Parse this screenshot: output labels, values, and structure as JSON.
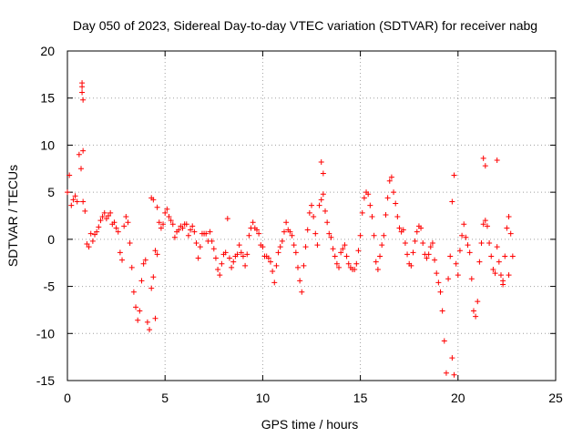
{
  "chart_data": {
    "type": "scatter",
    "title": "Day 050 of 2023, Sidereal Day-to-day VTEC variation (SDTVAR) for receiver nabg",
    "xlabel": "GPS time / hours",
    "ylabel": "SDTVAR / TECUs",
    "xlim": [
      0,
      25
    ],
    "ylim": [
      -15,
      20
    ],
    "xticks": [
      0,
      5,
      10,
      15,
      20,
      25
    ],
    "yticks": [
      -15,
      -10,
      -5,
      0,
      5,
      10,
      15,
      20
    ],
    "grid": true,
    "marker": "+",
    "color": "#ff0000",
    "series": [
      {
        "name": "SDTVAR",
        "x": [
          0.0,
          0.1,
          0.2,
          0.3,
          0.4,
          0.5,
          0.6,
          0.7,
          0.8,
          0.9,
          1.0,
          1.1,
          1.2,
          1.3,
          1.4,
          1.5,
          1.6,
          1.7,
          1.8,
          1.9,
          2.0,
          2.1,
          2.2,
          2.3,
          2.4,
          2.5,
          2.6,
          2.7,
          2.8,
          2.9,
          3.0,
          3.1,
          3.2,
          3.3,
          3.4,
          3.5,
          3.6,
          3.7,
          3.8,
          3.9,
          4.0,
          4.1,
          4.2,
          4.3,
          4.4,
          4.5,
          4.6,
          4.7,
          4.8,
          4.9,
          5.0,
          5.1,
          5.2,
          5.3,
          5.4,
          5.5,
          5.6,
          5.7,
          5.8,
          5.9,
          6.0,
          6.1,
          6.2,
          6.3,
          6.4,
          6.5,
          6.6,
          6.7,
          6.8,
          6.9,
          7.0,
          7.1,
          7.2,
          7.3,
          7.4,
          7.5,
          7.6,
          7.7,
          7.8,
          7.9,
          8.0,
          8.1,
          8.2,
          8.3,
          8.4,
          8.5,
          8.6,
          8.7,
          8.8,
          8.9,
          9.0,
          9.1,
          9.2,
          9.3,
          9.4,
          9.5,
          9.6,
          9.7,
          9.8,
          9.9,
          10.0,
          10.1,
          10.2,
          10.3,
          10.4,
          10.5,
          10.6,
          10.7,
          10.8,
          10.9,
          11.0,
          11.1,
          11.2,
          11.3,
          11.4,
          11.5,
          11.6,
          11.7,
          11.8,
          11.9,
          12.0,
          12.1,
          12.2,
          12.3,
          12.4,
          12.5,
          12.6,
          12.7,
          12.8,
          12.9,
          13.0,
          13.1,
          13.2,
          13.3,
          13.4,
          13.5,
          13.6,
          13.7,
          13.8,
          13.9,
          14.0,
          14.1,
          14.2,
          14.3,
          14.4,
          14.5,
          14.6,
          14.7,
          14.8,
          14.9,
          15.0,
          15.1,
          15.2,
          15.3,
          15.4,
          15.5,
          15.6,
          15.7,
          15.8,
          15.9,
          16.0,
          16.1,
          16.2,
          16.3,
          16.4,
          16.5,
          16.6,
          16.7,
          16.8,
          16.9,
          17.0,
          17.1,
          17.2,
          17.3,
          17.4,
          17.5,
          17.6,
          17.7,
          17.8,
          17.9,
          18.0,
          18.1,
          18.2,
          18.3,
          18.4,
          18.5,
          18.6,
          18.7,
          18.8,
          18.9,
          19.0,
          19.1,
          19.2,
          19.3,
          19.4,
          19.5,
          19.6,
          19.7,
          19.8,
          19.9,
          20.0,
          20.1,
          20.2,
          20.3,
          20.4,
          20.5,
          20.6,
          20.7,
          20.8,
          20.9,
          21.0,
          21.1,
          21.2,
          21.3,
          21.4,
          21.5,
          21.6,
          21.7,
          21.8,
          21.9,
          22.0,
          22.1,
          22.2,
          22.3,
          22.4,
          22.5,
          22.6,
          22.7,
          22.8,
          0.75,
          0.75,
          0.75,
          0.8,
          0.8,
          4.3,
          4.4,
          4.5,
          4.6,
          19.7,
          19.8,
          21.3,
          21.4,
          22.0,
          22.3,
          22.6,
          13.0,
          13.1
        ],
        "y": [
          5.0,
          6.8,
          3.6,
          4.2,
          4.6,
          4.0,
          9.0,
          7.5,
          4.0,
          3.0,
          -0.5,
          -0.8,
          0.6,
          -0.2,
          0.5,
          0.8,
          1.3,
          2.0,
          2.4,
          2.8,
          2.2,
          2.5,
          2.8,
          1.6,
          1.8,
          1.2,
          0.8,
          -1.4,
          -2.2,
          1.4,
          2.4,
          1.8,
          -0.4,
          -3.0,
          -5.6,
          -7.2,
          -8.6,
          -7.6,
          -4.4,
          -2.6,
          -2.2,
          -8.8,
          -9.6,
          -5.2,
          -4.0,
          -8.4,
          3.4,
          1.8,
          1.2,
          1.6,
          2.8,
          3.2,
          2.4,
          2.0,
          1.6,
          0.2,
          0.8,
          1.0,
          1.4,
          1.2,
          1.6,
          1.6,
          0.4,
          1.0,
          1.4,
          0.8,
          -0.4,
          -2.0,
          -0.8,
          0.6,
          0.6,
          0.6,
          -0.2,
          0.8,
          -0.2,
          -1.0,
          -2.0,
          -3.2,
          -3.8,
          -2.6,
          -1.6,
          -1.4,
          2.2,
          -2.0,
          -3.0,
          -2.4,
          -1.8,
          -1.6,
          -0.6,
          -1.4,
          -1.8,
          -2.8,
          -1.6,
          0.4,
          1.2,
          1.8,
          1.2,
          1.0,
          0.6,
          -0.6,
          -0.8,
          -1.8,
          -1.8,
          -2.0,
          -2.4,
          -3.4,
          -4.6,
          -2.8,
          -1.4,
          -0.8,
          -0.2,
          0.8,
          1.8,
          1.0,
          0.8,
          0.4,
          -0.6,
          -1.4,
          -3.0,
          -4.4,
          -5.6,
          -2.8,
          -0.8,
          1.0,
          2.8,
          3.6,
          2.4,
          0.6,
          -0.6,
          3.6,
          4.2,
          4.8,
          3.0,
          1.8,
          0.6,
          0.2,
          -1.0,
          -1.8,
          -2.6,
          -3.0,
          -1.4,
          -1.0,
          -0.6,
          -1.8,
          -2.6,
          -3.0,
          -3.2,
          -3.2,
          -2.6,
          -1.2,
          0.4,
          2.8,
          4.4,
          5.0,
          4.8,
          3.6,
          2.4,
          0.4,
          -2.4,
          -3.2,
          -1.8,
          -0.6,
          0.4,
          2.6,
          4.4,
          6.2,
          6.6,
          5.0,
          3.8,
          2.4,
          1.2,
          0.8,
          1.0,
          -0.4,
          -1.6,
          -2.6,
          -2.8,
          -1.4,
          -0.2,
          0.8,
          1.4,
          1.2,
          -0.4,
          -1.6,
          -2.0,
          -1.6,
          -0.8,
          -0.4,
          -2.2,
          -3.6,
          -4.6,
          -5.6,
          -7.6,
          -10.8,
          -14.2,
          -4.2,
          -1.8,
          4.0,
          6.8,
          -2.6,
          -3.8,
          -1.2,
          0.4,
          1.6,
          0.2,
          -0.6,
          -1.4,
          -4.2,
          -7.6,
          -8.2,
          -6.6,
          -2.4,
          -0.4,
          1.6,
          2.0,
          1.4,
          -0.4,
          -1.8,
          -3.2,
          -3.6,
          -0.8,
          -2.4,
          -3.8,
          -4.4,
          -1.8,
          1.2,
          2.4,
          0.6,
          -1.8,
          16.6,
          16.2,
          15.6,
          14.8,
          9.4,
          4.4,
          4.2,
          -1.2,
          -1.6,
          -12.6,
          -14.4,
          8.6,
          7.8,
          8.4,
          -4.8,
          -3.8,
          8.2,
          7.0
        ]
      }
    ]
  }
}
